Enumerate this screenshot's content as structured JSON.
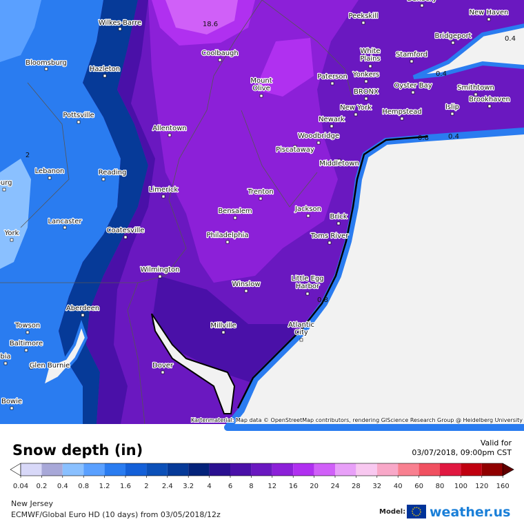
{
  "map": {
    "cities": [
      {
        "label_lines": [
          "Wilkes-Barre"
        ]
      },
      {
        "label_lines": [
          "Bloomsburg"
        ]
      },
      {
        "label_lines": [
          "Hazleton"
        ]
      },
      {
        "label_lines": [
          "Pottsville"
        ]
      },
      {
        "label_lines": [
          "Lebanon"
        ]
      },
      {
        "label_lines": [
          "Reading"
        ]
      },
      {
        "label_lines": [
          "Lancaster"
        ]
      },
      {
        "label_lines": [
          "York"
        ]
      },
      {
        "label_lines": [
          "Coatesville"
        ]
      },
      {
        "label_lines": [
          "Allentown"
        ]
      },
      {
        "label_lines": [
          "Coolbaugh"
        ]
      },
      {
        "label_lines": [
          "Mount",
          "Olive"
        ]
      },
      {
        "label_lines": [
          "Peekskill"
        ]
      },
      {
        "label_lines": [
          "Danbury"
        ]
      },
      {
        "label_lines": [
          "New Haven"
        ]
      },
      {
        "label_lines": [
          "Bridgeport"
        ]
      },
      {
        "label_lines": [
          "Stamford"
        ]
      },
      {
        "label_lines": [
          "White",
          "Plains"
        ]
      },
      {
        "label_lines": [
          "Yonkers"
        ]
      },
      {
        "label_lines": [
          "Paterson"
        ]
      },
      {
        "label_lines": [
          "BRONX"
        ]
      },
      {
        "label_lines": [
          "Oyster Bay"
        ]
      },
      {
        "label_lines": [
          "Smithtown"
        ]
      },
      {
        "label_lines": [
          "New York"
        ]
      },
      {
        "label_lines": [
          "Hempstead"
        ]
      },
      {
        "label_lines": [
          "Islip"
        ]
      },
      {
        "label_lines": [
          "Brookhaven"
        ]
      },
      {
        "label_lines": [
          "Newark"
        ]
      },
      {
        "label_lines": [
          "Woodbridge"
        ]
      },
      {
        "label_lines": [
          "Piscataway"
        ]
      },
      {
        "label_lines": [
          "Middletown"
        ]
      },
      {
        "label_lines": [
          "Limerick"
        ]
      },
      {
        "label_lines": [
          "Trenton"
        ]
      },
      {
        "label_lines": [
          "Jackson"
        ]
      },
      {
        "label_lines": [
          "Bensalem"
        ]
      },
      {
        "label_lines": [
          "Brick"
        ]
      },
      {
        "label_lines": [
          "Toms River"
        ]
      },
      {
        "label_lines": [
          "Philadelphia"
        ]
      },
      {
        "label_lines": [
          "Wilmington"
        ]
      },
      {
        "label_lines": [
          "Winslow"
        ]
      },
      {
        "label_lines": [
          "Little Egg",
          "Harbor"
        ]
      },
      {
        "label_lines": [
          "Aberdeen"
        ]
      },
      {
        "label_lines": [
          "Towson"
        ]
      },
      {
        "label_lines": [
          "Millville"
        ]
      },
      {
        "label_lines": [
          "Atlantic",
          "City"
        ]
      },
      {
        "label_lines": [
          "Baltimore"
        ]
      },
      {
        "label_lines": [
          "bia"
        ]
      },
      {
        "label_lines": [
          "Glen Burnie"
        ]
      },
      {
        "label_lines": [
          "Dover"
        ]
      },
      {
        "label_lines": [
          "Bowie"
        ]
      },
      {
        "label_lines": [
          "burg"
        ]
      }
    ],
    "contour_labels": [
      "18.6",
      "0.4",
      "0.4",
      "0.8",
      "0.4",
      "2",
      "0.8"
    ],
    "attribution": "Kartenmaterial: Map data © OpenStreetMap contributors, rendering GIScience Research Group @ Heidelberg University"
  },
  "legend": {
    "title": "Snow depth (in)",
    "valid_label": "Valid for",
    "valid_time": "03/07/2018, 09:00pm CST",
    "ticks": [
      0.04,
      0.2,
      0.4,
      0.8,
      1.2,
      1.6,
      2,
      2.4,
      3.2,
      4,
      6,
      8,
      12,
      16,
      20,
      24,
      28,
      32,
      40,
      60,
      80,
      100,
      120,
      160
    ],
    "colors": [
      "#ffffff",
      "#d8d8f8",
      "#a8a8d8",
      "#8ac0ff",
      "#5aa0ff",
      "#2a7cf0",
      "#1460d8",
      "#0c50b8",
      "#063a98",
      "#04237a",
      "#2a1090",
      "#4a10a8",
      "#6a18c0",
      "#8c20d8",
      "#b030f0",
      "#d060f8",
      "#e8a0f8",
      "#f8c8f0",
      "#f8a8c8",
      "#f88090",
      "#f05060",
      "#e01840",
      "#c00010",
      "#900000",
      "#600000"
    ]
  },
  "footer": {
    "region": "New Jersey",
    "model_run": "ECMWF/Global Euro HD (10 days) from 03/05/2018/12z",
    "model_label": "Model:",
    "brand": "weather.us"
  }
}
